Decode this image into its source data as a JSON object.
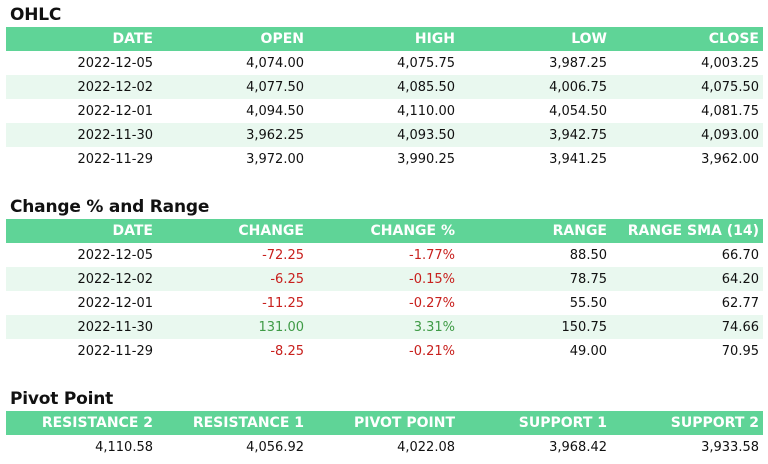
{
  "ohlc": {
    "title": "OHLC",
    "headers": [
      "DATE",
      "OPEN",
      "HIGH",
      "LOW",
      "CLOSE"
    ],
    "rows": [
      [
        "2022-12-05",
        "4,074.00",
        "4,075.75",
        "3,987.25",
        "4,003.25"
      ],
      [
        "2022-12-02",
        "4,077.50",
        "4,085.50",
        "4,006.75",
        "4,075.50"
      ],
      [
        "2022-12-01",
        "4,094.50",
        "4,110.00",
        "4,054.50",
        "4,081.75"
      ],
      [
        "2022-11-30",
        "3,962.25",
        "4,093.50",
        "3,942.75",
        "4,093.00"
      ],
      [
        "2022-11-29",
        "3,972.00",
        "3,990.25",
        "3,941.25",
        "3,962.00"
      ]
    ]
  },
  "change": {
    "title": "Change % and Range",
    "headers": [
      "DATE",
      "CHANGE",
      "CHANGE %",
      "RANGE",
      "RANGE SMA (14)"
    ],
    "rows": [
      [
        "2022-12-05",
        "-72.25",
        "-1.77%",
        "88.50",
        "66.70"
      ],
      [
        "2022-12-02",
        "-6.25",
        "-0.15%",
        "78.75",
        "64.20"
      ],
      [
        "2022-12-01",
        "-11.25",
        "-0.27%",
        "55.50",
        "62.77"
      ],
      [
        "2022-11-30",
        "131.00",
        "3.31%",
        "150.75",
        "74.66"
      ],
      [
        "2022-11-29",
        "-8.25",
        "-0.21%",
        "49.00",
        "70.95"
      ]
    ]
  },
  "pivot": {
    "title": "Pivot Point",
    "headers": [
      "RESISTANCE 2",
      "RESISTANCE 1",
      "PIVOT POINT",
      "SUPPORT 1",
      "SUPPORT 2"
    ],
    "rows": [
      [
        "4,110.58",
        "4,056.92",
        "4,022.08",
        "3,968.42",
        "3,933.58"
      ]
    ]
  },
  "colors": {
    "header_bg": "#5fd497",
    "row_alt": "#e9f8ef",
    "negative": "#c8201d",
    "positive": "#3f9b46"
  }
}
